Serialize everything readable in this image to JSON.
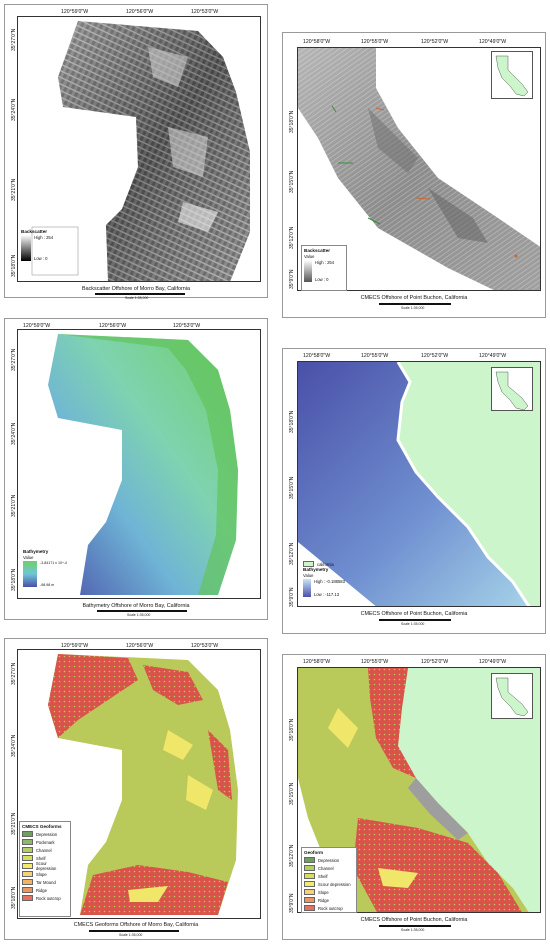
{
  "panels": {
    "p1": {
      "title": "Backscatter Offshore of Morro Bay, California",
      "x_ticks": [
        "120°59'0\"W",
        "120°56'0\"W",
        "120°53'0\"W"
      ],
      "y_ticks": [
        "35°27'0\"N",
        "35°24'0\"N",
        "35°21'0\"N",
        "35°18'0\"N"
      ],
      "scale_text": "Scale 1:35,000",
      "legend": {
        "title": "Backscatter",
        "high": "High : 254",
        "low": "Low : 0"
      }
    },
    "p2": {
      "title": "CMECS Offshore of Point Buchon, California",
      "x_ticks": [
        "120°58'0\"W",
        "120°55'0\"W",
        "120°52'0\"W",
        "120°49'0\"W"
      ],
      "y_ticks": [
        "35°18'0\"N",
        "35°15'0\"N",
        "35°12'0\"N",
        "35°9'0\"N"
      ],
      "scale_text": "Scale 1:35,000",
      "legend": {
        "title": "Backscatter",
        "sub": "Value",
        "high": "High : 254",
        "low": "Low : 0"
      }
    },
    "p3": {
      "title": "Bathymetry Offshore of Morro Bay, California",
      "x_ticks": [
        "120°59'0\"W",
        "120°56'0\"W",
        "120°53'0\"W"
      ],
      "y_ticks": [
        "35°27'0\"N",
        "35°24'0\"N",
        "35°21'0\"N",
        "35°18'0\"N"
      ],
      "scale_text": "Scale 1:35,000",
      "legend": {
        "title": "Bathymetry",
        "sub": "Value",
        "high": "-3.84171 x 10^-4",
        "low": "-98.98 m"
      }
    },
    "p4": {
      "title": "CMECS Offshore of Point Buchon, California",
      "x_ticks": [
        "120°58'0\"W",
        "120°55'0\"W",
        "120°52'0\"W",
        "120°49'0\"W"
      ],
      "y_ticks": [
        "35°18'0\"N",
        "35°15'0\"N",
        "35°12'0\"N",
        "35°9'0\"N"
      ],
      "scale_text": "Scale 1:35,000",
      "legend": {
        "land": "california",
        "title": "Bathymetry",
        "sub": "Value",
        "high": "High : -0.188583",
        "low": "Low : -117.13"
      }
    },
    "p5": {
      "title": "CMECS Geoforms Offshore of Morro Bay, California",
      "x_ticks": [
        "120°59'0\"W",
        "120°56'0\"W",
        "120°53'0\"W"
      ],
      "y_ticks": [
        "35°27'0\"N",
        "35°24'0\"N",
        "35°21'0\"N",
        "35°18'0\"N"
      ],
      "scale_text": "Scale 1:35,000",
      "legend": {
        "title": "CMECS Geoforms",
        "items": [
          {
            "label": "Depression",
            "color": "#6f9f5f"
          },
          {
            "label": "Pockmark",
            "color": "#8db86a"
          },
          {
            "label": "Channel",
            "color": "#b3cf62"
          },
          {
            "label": "Shelf",
            "color": "#d6de5a"
          },
          {
            "label": "Scour depression",
            "color": "#f0ec6a"
          },
          {
            "label": "Slope",
            "color": "#f4d27a"
          },
          {
            "label": "Tar Mound",
            "color": "#f2b45e"
          },
          {
            "label": "Ridge",
            "color": "#ef9560"
          },
          {
            "label": "Rock outcrop",
            "color": "#e8705f"
          }
        ]
      }
    },
    "p6": {
      "title": "CMECS Offshore of Point Buchon, California",
      "x_ticks": [
        "120°58'0\"W",
        "120°55'0\"W",
        "120°52'0\"W",
        "120°49'0\"W"
      ],
      "y_ticks": [
        "35°18'0\"N",
        "35°15'0\"N",
        "35°12'0\"N",
        "35°9'0\"N"
      ],
      "scale_text": "Scale 1:35,000",
      "legend": {
        "title": "Geoform",
        "items": [
          {
            "label": "Depression",
            "color": "#6f9f5f"
          },
          {
            "label": "Channel",
            "color": "#b3cf62"
          },
          {
            "label": "Shelf",
            "color": "#d6de5a"
          },
          {
            "label": "Scour depression",
            "color": "#f0ec6a"
          },
          {
            "label": "Slope",
            "color": "#f4d27a"
          },
          {
            "label": "Ridge",
            "color": "#ef9560"
          },
          {
            "label": "Rock outcrop",
            "color": "#e8705f"
          }
        ]
      }
    }
  },
  "colors": {
    "land": "#ccf5cc",
    "rock": "#d9534a",
    "shelf": "#b9c95a",
    "bathy_shallow": "#6fcf6a",
    "bathy_mid": "#6fc6d6",
    "bathy_deep": "#4a50a8"
  }
}
